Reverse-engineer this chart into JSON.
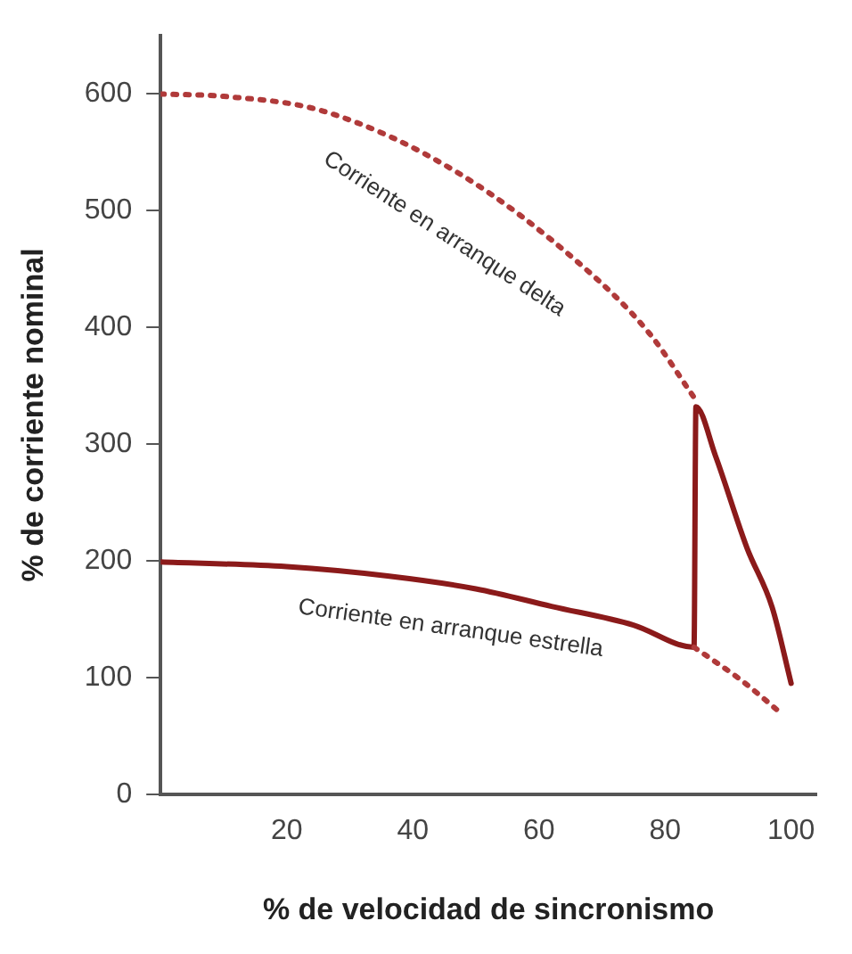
{
  "chart_data": {
    "type": "line",
    "xlabel": "% de velocidad de sincronismo",
    "ylabel": "% de corriente nominal",
    "xlim": [
      0,
      104
    ],
    "ylim": [
      0,
      650
    ],
    "xticks": [
      20,
      40,
      60,
      80,
      100
    ],
    "yticks": [
      0,
      100,
      200,
      300,
      400,
      500,
      600
    ],
    "grid": false,
    "legend": false,
    "marker": "none",
    "series": [
      {
        "color": "#b03a3a",
        "line_style": "dotted",
        "x": [
          0,
          10,
          26,
          47,
          67,
          77.5,
          84.6
        ],
        "values": [
          600,
          598,
          585,
          533,
          452,
          395,
          340
        ]
      },
      {
        "color": "#b03a3a",
        "line_style": "dotted",
        "x": [
          84.6,
          92,
          98.5
        ],
        "values": [
          126,
          98,
          69
        ]
      },
      {
        "color": "#8b1a1a",
        "line_style": "solid",
        "x": [
          0,
          20,
          36,
          50,
          62,
          75,
          84.6,
          84.9,
          88,
          93,
          97,
          100
        ],
        "values": [
          199,
          195,
          187,
          176,
          161,
          145,
          126,
          332,
          290,
          211,
          160,
          95
        ]
      }
    ],
    "annotations": [
      "Corriente en arranque delta",
      "Corriente en arranque estrella"
    ]
  }
}
